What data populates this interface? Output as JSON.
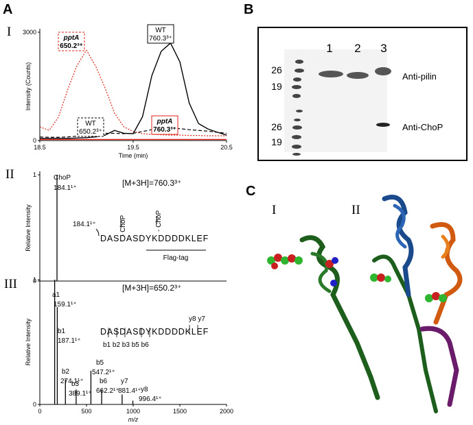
{
  "panel_labels": [
    "A",
    "B",
    "C"
  ],
  "sub_labels": {
    "A": [
      "I",
      "II",
      "III"
    ],
    "C": [
      "I",
      "II"
    ]
  },
  "chart_data": [
    {
      "type": "line",
      "xlabel": "Time (min)",
      "ylabel": "Intensity (Counts)",
      "xlim": [
        18.5,
        20.5
      ],
      "xticks": [
        18.5,
        19.5,
        20.5
      ],
      "ylim": [
        0,
        3000
      ],
      "yticks": [
        0,
        3000
      ],
      "x": [
        18.5,
        18.6,
        18.7,
        18.8,
        18.9,
        19.0,
        19.1,
        19.2,
        19.3,
        19.4,
        19.5,
        19.6,
        19.7,
        19.8,
        19.9,
        20.0,
        20.1,
        20.2,
        20.3,
        20.4,
        20.5
      ],
      "series": [
        {
          "name": "pptA",
          "ion": "650.2³⁺",
          "color": "#e0201b",
          "style": "dotted",
          "values": [
            380,
            280,
            650,
            1420,
            2090,
            2500,
            2050,
            1450,
            760,
            380,
            250,
            190,
            170,
            160,
            150,
            150,
            140,
            140,
            130,
            130,
            130
          ]
        },
        {
          "name": "WT",
          "ion": "760.3³⁺",
          "color": "#000000",
          "style": "solid",
          "values": [
            60,
            60,
            60,
            60,
            70,
            80,
            100,
            150,
            280,
            200,
            190,
            660,
            1800,
            2470,
            2700,
            2180,
            1040,
            470,
            320,
            230,
            150
          ]
        },
        {
          "name": "WT",
          "ion": "650.2³⁺",
          "color": "#000000",
          "style": "dashed",
          "values": [
            100,
            90,
            90,
            100,
            120,
            150,
            190,
            200,
            200,
            190,
            200,
            250,
            300,
            320,
            340,
            330,
            300,
            280,
            260,
            230,
            200
          ]
        },
        {
          "name": "pptA",
          "ion": "760.3³⁺",
          "color": "#e0201b",
          "style": "solid",
          "values": [
            30,
            30,
            30,
            30,
            30,
            30,
            30,
            30,
            30,
            30,
            30,
            30,
            30,
            30,
            30,
            30,
            30,
            30,
            30,
            30,
            30
          ]
        }
      ]
    },
    {
      "type": "stem",
      "ylabel": "Relative Intensity",
      "precursor": "[M+3H]=760.3³⁺",
      "xlim": [
        0,
        2000
      ],
      "ylim": [
        0,
        1
      ],
      "yticks": [
        0,
        1
      ],
      "x": [
        184.1
      ],
      "values": [
        1
      ],
      "ion_names": [
        "ChoP"
      ],
      "x_labels": [
        "184.1¹⁺"
      ],
      "color": "#000000",
      "sequence": "DASDASDYKDDDDKLEF",
      "fragment": "184.1¹⁺",
      "losses": [
        "- ChoP",
        "- ChoP"
      ],
      "tag": "Flag-tag"
    },
    {
      "type": "stem",
      "ylabel": "Relative Intensity",
      "xlabel": "m/z",
      "precursor": "[M+3H]=650.2³⁺",
      "xlim": [
        0,
        2000
      ],
      "xticks": [
        0,
        500,
        1000,
        1500,
        2000
      ],
      "ylim": [
        0,
        1
      ],
      "yticks": [
        0,
        1
      ],
      "x": [
        159.1,
        187.1,
        274.1,
        389.1,
        547.2,
        662.2,
        881.4,
        996.4
      ],
      "values": [
        1,
        0.78,
        0.2,
        0.12,
        0.27,
        0.12,
        0.08,
        0.03
      ],
      "ion_names": [
        "a1",
        "b1",
        "b2",
        "b3",
        "b5",
        "b6",
        "y7",
        "y8"
      ],
      "x_labels": [
        "159.1¹⁺",
        "187.1¹⁺",
        "274.1¹⁺",
        "389.1¹⁺",
        "547.2¹⁺",
        "662.2¹⁺",
        "881.4¹⁺",
        "996.4¹⁺"
      ],
      "color": "#000000",
      "sequence": "DASDASDYKDDDDKLEF",
      "b_fragments": "b1 b2 b3  b5 b6",
      "y_fragments": "y8 y7"
    }
  ],
  "gel": {
    "lanes": [
      "1",
      "2",
      "3"
    ],
    "markers": [
      "26",
      "19",
      "26",
      "19"
    ],
    "antibodies": [
      "Anti-pilin",
      "Anti-ChoP"
    ]
  }
}
